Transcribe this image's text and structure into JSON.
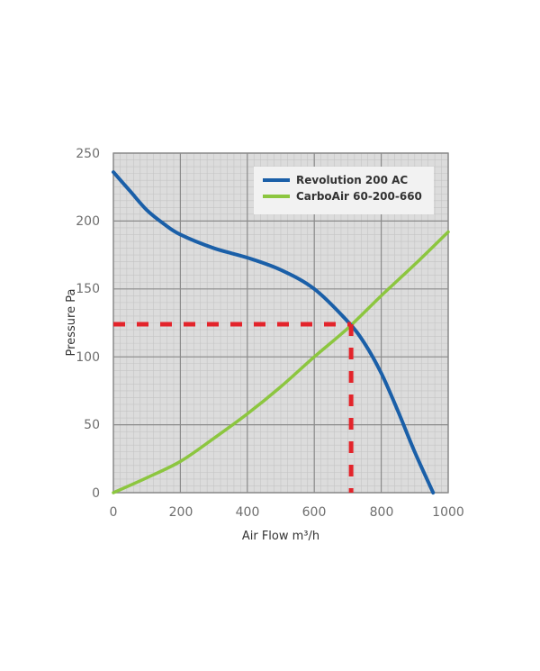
{
  "chart_data": {
    "type": "line",
    "title": "",
    "xlabel": "Air Flow m³/h",
    "ylabel": "Pressure Pa",
    "xlim": [
      0,
      1000
    ],
    "ylim": [
      0,
      250
    ],
    "x_ticks": [
      "0",
      "200",
      "400",
      "600",
      "800",
      "1000"
    ],
    "y_ticks": [
      "0",
      "50",
      "100",
      "150",
      "200",
      "250"
    ],
    "grid": true,
    "legend_position": "upper right (inside)",
    "series": [
      {
        "name": "Revolution 200 AC",
        "color": "#1a5fa8",
        "x": [
          0,
          50,
          100,
          150,
          200,
          300,
          400,
          500,
          600,
          700,
          750,
          800,
          850,
          900,
          955
        ],
        "y": [
          236,
          222,
          208,
          198,
          190,
          180,
          173,
          164,
          150,
          126,
          110,
          88,
          60,
          30,
          0
        ]
      },
      {
        "name": "CarboAir 60-200-660",
        "color": "#8cc63f",
        "x": [
          0,
          100,
          200,
          300,
          400,
          500,
          600,
          700,
          800,
          900,
          1000
        ],
        "y": [
          0,
          11,
          23,
          40,
          58,
          78,
          100,
          121,
          145,
          168,
          192
        ]
      }
    ],
    "annotations": [
      {
        "type": "operating-point",
        "x": 710,
        "y": 124,
        "style": "red dashed guide lines to both axes",
        "color": "#e3242b"
      }
    ]
  },
  "axes": {
    "xlabel": "Air Flow m³/h",
    "ylabel": "Pressure Pa"
  },
  "legend": {
    "items": [
      {
        "label": "Revolution 200 AC",
        "color": "#1a5fa8"
      },
      {
        "label": "CarboAir 60-200-660",
        "color": "#8cc63f"
      }
    ]
  },
  "ticks": {
    "x": [
      "0",
      "200",
      "400",
      "600",
      "800",
      "1000"
    ],
    "y": [
      "0",
      "50",
      "100",
      "150",
      "200",
      "250"
    ]
  }
}
